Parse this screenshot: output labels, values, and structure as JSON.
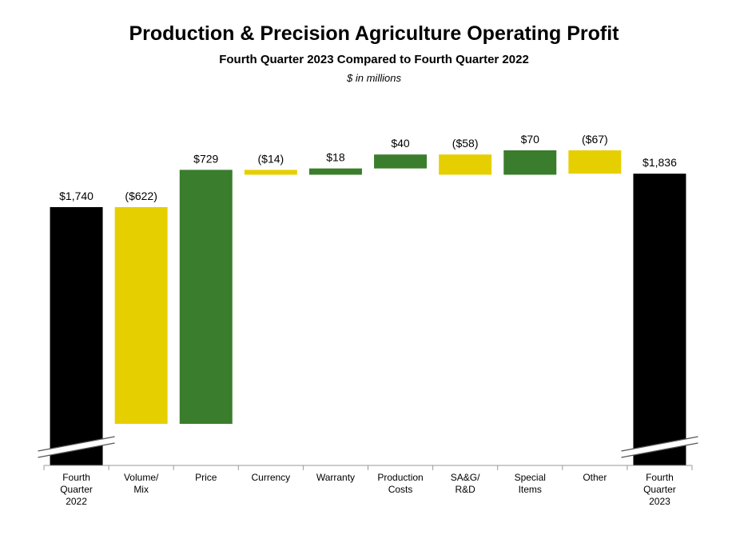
{
  "header": {
    "title": "Production & Precision Agriculture Operating Profit",
    "subtitle": "Fourth Quarter 2023 Compared to Fourth Quarter 2022",
    "units": "$ in millions"
  },
  "colors": {
    "total": "#000000",
    "increase": "#3a7d2c",
    "decrease": "#e6cf00",
    "axis": "#9a9a9a"
  },
  "chart_data": {
    "type": "bar",
    "subtype": "waterfall",
    "title": "Production & Precision Agriculture Operating Profit",
    "subtitle": "Fourth Quarter 2023 Compared to Fourth Quarter 2022",
    "ylabel": "$ in millions",
    "axis_break": true,
    "grid": false,
    "categories": [
      [
        "Fourth",
        "Quarter",
        "2022"
      ],
      [
        "Volume/",
        "Mix"
      ],
      [
        "Price"
      ],
      [
        "Currency"
      ],
      [
        "Warranty"
      ],
      [
        "Production",
        "Costs"
      ],
      [
        "SA&G/",
        "R&D"
      ],
      [
        "Special",
        "Items"
      ],
      [
        "Other"
      ],
      [
        "Fourth",
        "Quarter",
        "2023"
      ]
    ],
    "values": [
      1740,
      -622,
      729,
      -14,
      18,
      40,
      -58,
      70,
      -67,
      1836
    ],
    "kinds": [
      "total",
      "decrease",
      "increase",
      "decrease",
      "increase",
      "increase",
      "decrease",
      "increase",
      "decrease",
      "total"
    ],
    "labels": [
      "$1,740",
      "($622)",
      "$729",
      "($14)",
      "$18",
      "$40",
      "($58)",
      "$70",
      "($67)",
      "$1,836"
    ]
  }
}
